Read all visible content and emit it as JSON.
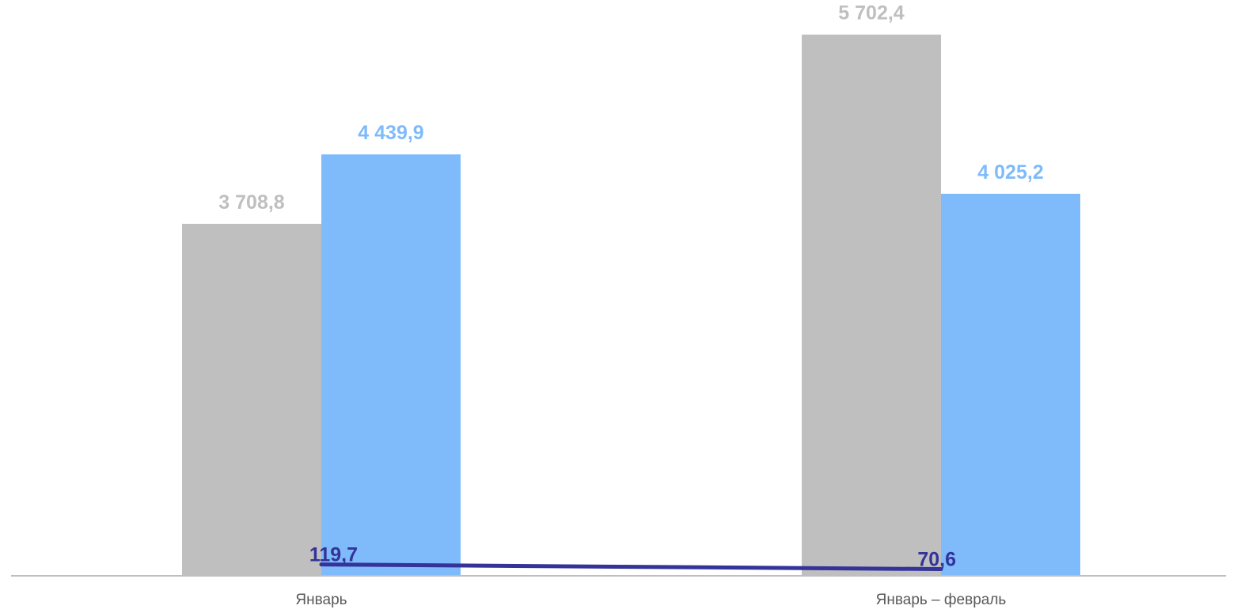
{
  "chart_data": {
    "type": "bar",
    "categories": [
      "Январь",
      "Январь – февраль"
    ],
    "series": [
      {
        "kind": "bar",
        "values": [
          3708.8,
          5702.4
        ],
        "labels": [
          "3 708,8",
          "5 702,4"
        ],
        "color": "#bfbfbf",
        "label_color": "#bfbfbf"
      },
      {
        "kind": "bar",
        "values": [
          4439.9,
          4025.2
        ],
        "labels": [
          "4 439,9",
          "4 025,2"
        ],
        "color": "#7fbbfb",
        "label_color": "#7fbbfb"
      },
      {
        "kind": "line",
        "values": [
          119.7,
          70.6
        ],
        "labels": [
          "119,7",
          "70,6"
        ],
        "color": "#333399",
        "label_color": "#333399"
      }
    ],
    "title": "",
    "xlabel": "",
    "ylabel": "",
    "ylim": [
      0,
      5900
    ],
    "grid": false,
    "legend": "none",
    "axis_color": "#bfbfbf"
  }
}
